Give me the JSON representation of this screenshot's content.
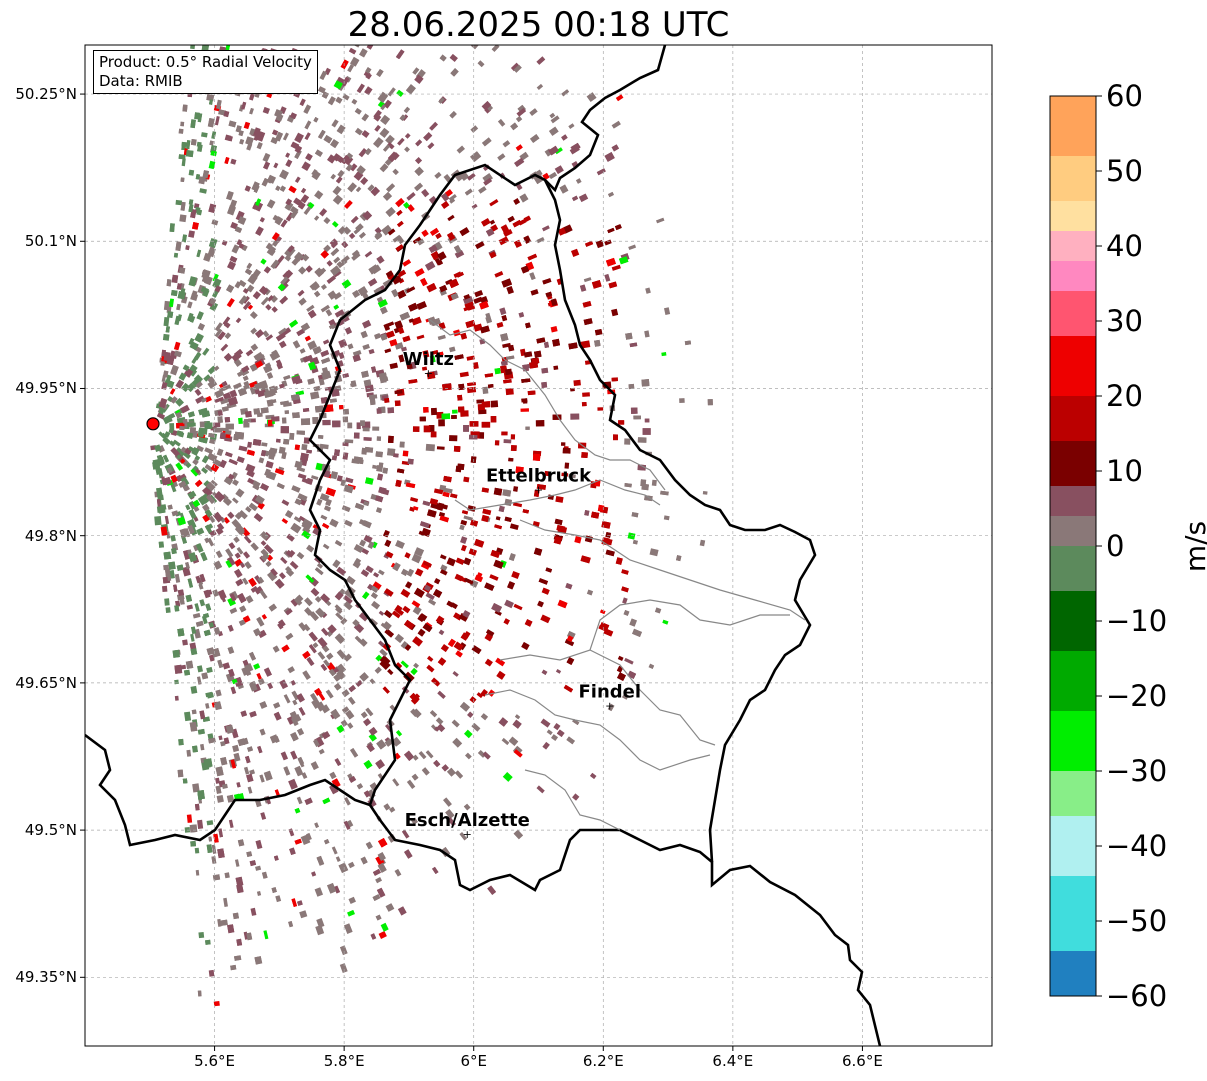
{
  "title": "28.06.2025 00:18 UTC",
  "info": {
    "product": "Product: 0.5° Radial Velocity",
    "source": "Data: RMIB"
  },
  "map_extent": {
    "lon_min": 5.4,
    "lon_max": 6.8,
    "lat_min": 49.28,
    "lat_max": 50.3
  },
  "lat_ticks": [
    {
      "value": 50.25,
      "label": "50.25°N"
    },
    {
      "value": 50.1,
      "label": "50.1°N"
    },
    {
      "value": 49.95,
      "label": "49.95°N"
    },
    {
      "value": 49.8,
      "label": "49.8°N"
    },
    {
      "value": 49.65,
      "label": "49.65°N"
    },
    {
      "value": 49.5,
      "label": "49.5°N"
    },
    {
      "value": 49.35,
      "label": "49.35°N"
    }
  ],
  "lon_ticks": [
    {
      "value": 5.6,
      "label": "5.6°E"
    },
    {
      "value": 5.8,
      "label": "5.8°E"
    },
    {
      "value": 6.0,
      "label": "6°E"
    },
    {
      "value": 6.2,
      "label": "6.2°E"
    },
    {
      "value": 6.4,
      "label": "6.4°E"
    },
    {
      "value": 6.6,
      "label": "6.6°E"
    }
  ],
  "radar_site": {
    "lon": 5.505,
    "lat": 49.914,
    "color": "#ff0000"
  },
  "cities": [
    {
      "name": "Wiltz",
      "lon": 5.93,
      "lat": 49.966
    },
    {
      "name": "Ettelbruck",
      "lon": 6.1,
      "lat": 49.847
    },
    {
      "name": "Findel",
      "lon": 6.21,
      "lat": 49.627
    },
    {
      "name": "Esch/Alzette",
      "lon": 5.99,
      "lat": 49.496
    }
  ],
  "colorbar": {
    "unit": "m/s",
    "min": -60,
    "max": 60,
    "ticks": [
      {
        "value": 60,
        "label": "60"
      },
      {
        "value": 50,
        "label": "50"
      },
      {
        "value": 40,
        "label": "40"
      },
      {
        "value": 30,
        "label": "30"
      },
      {
        "value": 20,
        "label": "20"
      },
      {
        "value": 10,
        "label": "10"
      },
      {
        "value": 0,
        "label": "0"
      },
      {
        "value": -10,
        "label": "−10"
      },
      {
        "value": -20,
        "label": "−20"
      },
      {
        "value": -30,
        "label": "−30"
      },
      {
        "value": -40,
        "label": "−40"
      },
      {
        "value": -50,
        "label": "−50"
      },
      {
        "value": -60,
        "label": "−60"
      }
    ],
    "stops": [
      {
        "from": 52,
        "to": 60,
        "color": "#ffa35a"
      },
      {
        "from": 46,
        "to": 52,
        "color": "#ffcc80"
      },
      {
        "from": 42,
        "to": 46,
        "color": "#ffe0a0"
      },
      {
        "from": 38,
        "to": 42,
        "color": "#ffb0c0"
      },
      {
        "from": 34,
        "to": 38,
        "color": "#ff88c0"
      },
      {
        "from": 28,
        "to": 34,
        "color": "#ff5570"
      },
      {
        "from": 20,
        "to": 28,
        "color": "#ee0000"
      },
      {
        "from": 14,
        "to": 20,
        "color": "#bb0000"
      },
      {
        "from": 8,
        "to": 14,
        "color": "#7a0000"
      },
      {
        "from": 4,
        "to": 8,
        "color": "#885060"
      },
      {
        "from": 0,
        "to": 4,
        "color": "#8a7878"
      },
      {
        "from": -6,
        "to": 0,
        "color": "#5c8a5c"
      },
      {
        "from": -14,
        "to": -6,
        "color": "#006600"
      },
      {
        "from": -22,
        "to": -14,
        "color": "#00aa00"
      },
      {
        "from": -30,
        "to": -22,
        "color": "#00ee00"
      },
      {
        "from": -36,
        "to": -30,
        "color": "#88ee88"
      },
      {
        "from": -44,
        "to": -36,
        "color": "#b0f0f0"
      },
      {
        "from": -54,
        "to": -44,
        "color": "#40dddd"
      },
      {
        "from": -60,
        "to": -54,
        "color": "#2080c0"
      }
    ]
  }
}
